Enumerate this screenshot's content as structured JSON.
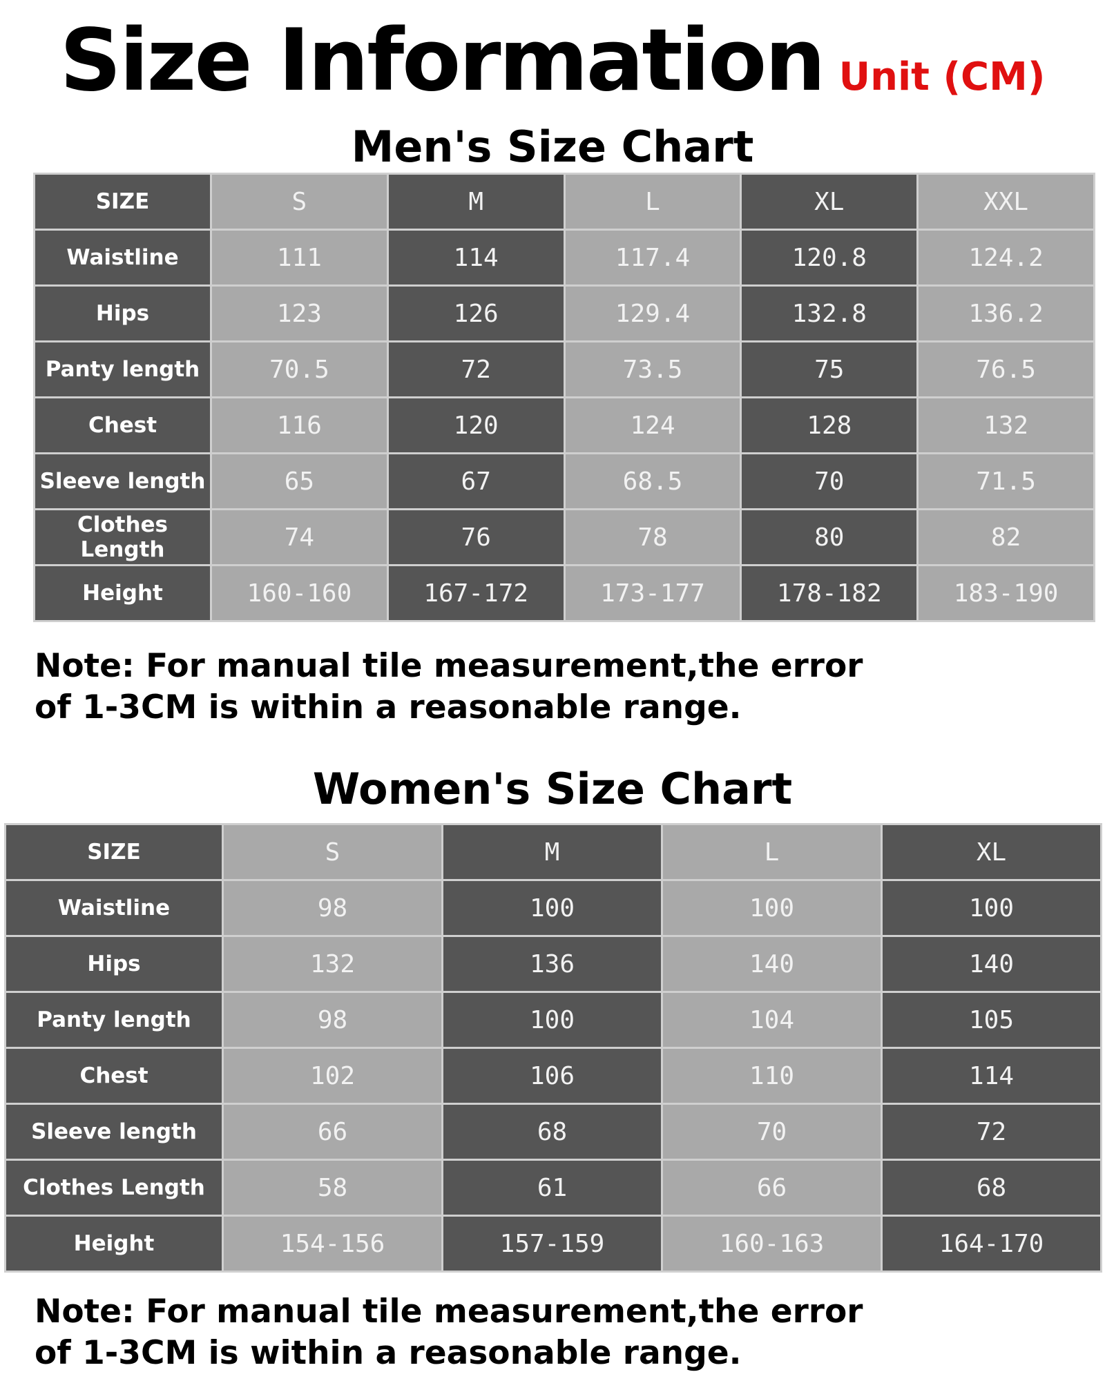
{
  "header": {
    "title": "Size Information",
    "unit": "Unit (CM)"
  },
  "men": {
    "title": "Men's Size Chart",
    "header_label": "SIZE",
    "sizes": [
      "S",
      "M",
      "L",
      "XL",
      "XXL"
    ],
    "rows": [
      {
        "label": "Waistline",
        "values": [
          "111",
          "114",
          "117.4",
          "120.8",
          "124.2"
        ]
      },
      {
        "label": "Hips",
        "values": [
          "123",
          "126",
          "129.4",
          "132.8",
          "136.2"
        ]
      },
      {
        "label": "Panty length",
        "values": [
          "70.5",
          "72",
          "73.5",
          "75",
          "76.5"
        ]
      },
      {
        "label": "Chest",
        "values": [
          "116",
          "120",
          "124",
          "128",
          "132"
        ]
      },
      {
        "label": "Sleeve length",
        "values": [
          "65",
          "67",
          "68.5",
          "70",
          "71.5"
        ]
      },
      {
        "label": "Clothes Length",
        "values": [
          "74",
          "76",
          "78",
          "80",
          "82"
        ]
      },
      {
        "label": "Height",
        "values": [
          "160-160",
          "167-172",
          "173-177",
          "178-182",
          "183-190"
        ]
      }
    ],
    "note_line1": "Note: For manual tile measurement,the error",
    "note_line2": "of 1-3CM is within a reasonable range."
  },
  "women": {
    "title": "Women's Size Chart",
    "header_label": "SIZE",
    "sizes": [
      "S",
      "M",
      "L",
      "XL"
    ],
    "rows": [
      {
        "label": "Waistline",
        "values": [
          "98",
          "100",
          "100",
          "100"
        ]
      },
      {
        "label": "Hips",
        "values": [
          "132",
          "136",
          "140",
          "140"
        ]
      },
      {
        "label": "Panty length",
        "values": [
          "98",
          "100",
          "104",
          "105"
        ]
      },
      {
        "label": "Chest",
        "values": [
          "102",
          "106",
          "110",
          "114"
        ]
      },
      {
        "label": "Sleeve length",
        "values": [
          "66",
          "68",
          "70",
          "72"
        ]
      },
      {
        "label": "Clothes Length",
        "values": [
          "58",
          "61",
          "66",
          "68"
        ]
      },
      {
        "label": "Height",
        "values": [
          "154-156",
          "157-159",
          "160-163",
          "164-170"
        ]
      }
    ],
    "note_line1": "Note: For manual tile measurement,the error",
    "note_line2": "of 1-3CM is within a reasonable range."
  }
}
